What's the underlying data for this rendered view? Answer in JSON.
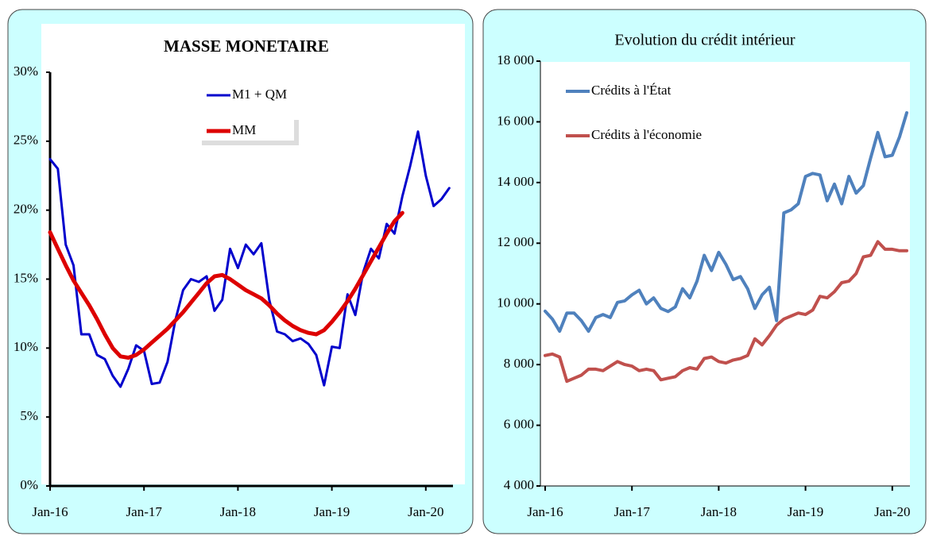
{
  "chart_data": [
    {
      "type": "line",
      "title": "MASSE MONETAIRE",
      "categories": [
        "Jan-16",
        null,
        null,
        null,
        null,
        null,
        null,
        null,
        null,
        null,
        null,
        null,
        "Jan-17",
        null,
        null,
        null,
        null,
        null,
        null,
        null,
        null,
        null,
        null,
        null,
        "Jan-18",
        null,
        null,
        null,
        null,
        null,
        null,
        null,
        null,
        null,
        null,
        null,
        "Jan-19",
        null,
        null,
        null,
        null,
        null,
        null,
        null,
        null,
        null,
        null,
        null,
        "Jan-20",
        null,
        null,
        null
      ],
      "series": [
        {
          "name": "M1 + QM",
          "color": "#0000cc",
          "values": [
            23.7,
            23,
            17.5,
            16,
            11,
            11,
            9.5,
            9.2,
            8,
            7.2,
            8.5,
            10.2,
            9.8,
            7.4,
            7.5,
            9,
            12,
            14.2,
            15,
            14.8,
            15.2,
            12.7,
            13.5,
            17.2,
            15.8,
            17.5,
            16.8,
            17.6,
            13.5,
            11.2,
            11,
            10.5,
            10.7,
            10.3,
            9.5,
            7.3,
            10.1,
            10,
            13.9,
            12.4,
            15.5,
            17.2,
            16.5,
            19,
            18.3,
            21,
            23.2,
            25.7,
            22.5,
            20.3,
            20.8,
            21.6
          ]
        },
        {
          "name": "MM",
          "color": "#dd0000",
          "values": [
            18.4,
            17.2,
            16,
            14.9,
            14,
            13.1,
            12.1,
            11,
            10,
            9.4,
            9.3,
            9.5,
            9.9,
            10.4,
            10.9,
            11.4,
            12,
            12.6,
            13.3,
            14,
            14.7,
            15.2,
            15.3,
            15,
            14.6,
            14.2,
            13.9,
            13.6,
            13.1,
            12.5,
            12,
            11.6,
            11.3,
            11.1,
            11,
            11.3,
            11.9,
            12.6,
            13.4,
            14.3,
            15.3,
            16.3,
            17.3,
            18.3,
            19.2,
            19.8,
            null,
            null,
            null,
            null,
            null,
            null
          ]
        }
      ],
      "ylim": [
        0,
        30
      ],
      "yticks": [
        {
          "value": 0,
          "label": "0%"
        },
        {
          "value": 5,
          "label": "5%"
        },
        {
          "value": 10,
          "label": "10%"
        },
        {
          "value": 15,
          "label": "15%"
        },
        {
          "value": 20,
          "label": "20%"
        },
        {
          "value": 25,
          "label": "25%"
        },
        {
          "value": 30,
          "label": "30%"
        }
      ],
      "legend": "upper center"
    },
    {
      "type": "line",
      "title": "Evolution du crédit intérieur",
      "categories": [
        "Jan-16",
        null,
        null,
        null,
        null,
        null,
        null,
        null,
        null,
        null,
        null,
        null,
        "Jan-17",
        null,
        null,
        null,
        null,
        null,
        null,
        null,
        null,
        null,
        null,
        null,
        "Jan-18",
        null,
        null,
        null,
        null,
        null,
        null,
        null,
        null,
        null,
        null,
        null,
        "Jan-19",
        null,
        null,
        null,
        null,
        null,
        null,
        null,
        null,
        null,
        null,
        null,
        "Jan-20",
        null,
        null
      ],
      "series": [
        {
          "name": "Crédits à l'État",
          "color": "#4f81bd",
          "values": [
            9760,
            9500,
            9100,
            9700,
            9700,
            9450,
            9100,
            9550,
            9650,
            9550,
            10050,
            10100,
            10300,
            10450,
            10000,
            10200,
            9850,
            9750,
            9900,
            10500,
            10200,
            10750,
            11600,
            11100,
            11700,
            11300,
            10800,
            10900,
            10500,
            9850,
            10300,
            10550,
            9450,
            13000,
            13100,
            13300,
            14200,
            14300,
            14250,
            13400,
            13950,
            13300,
            14200,
            13650,
            13900,
            14800,
            15650,
            14850,
            14900,
            15500,
            16300
          ]
        },
        {
          "name": "Crédits à l'économie",
          "color": "#c0504d",
          "values": [
            8300,
            8350,
            8250,
            7450,
            7550,
            7650,
            7850,
            7850,
            7800,
            7950,
            8100,
            8000,
            7950,
            7800,
            7850,
            7800,
            7500,
            7550,
            7600,
            7800,
            7900,
            7850,
            8200,
            8250,
            8100,
            8050,
            8150,
            8200,
            8300,
            8850,
            8650,
            8950,
            9300,
            9500,
            9600,
            9700,
            9650,
            9800,
            10250,
            10200,
            10400,
            10700,
            10750,
            11000,
            11550,
            11600,
            12050,
            11800,
            11800,
            11750,
            11750
          ]
        }
      ],
      "ylim": [
        4000,
        18000
      ],
      "yticks": [
        {
          "value": 4000,
          "label": "4 000"
        },
        {
          "value": 6000,
          "label": "6 000"
        },
        {
          "value": 8000,
          "label": "8 000"
        },
        {
          "value": 10000,
          "label": "10 000"
        },
        {
          "value": 12000,
          "label": "12 000"
        },
        {
          "value": 14000,
          "label": "14 000"
        },
        {
          "value": 16000,
          "label": "16 000"
        },
        {
          "value": 18000,
          "label": "18 000"
        }
      ],
      "legend": "upper left"
    }
  ]
}
